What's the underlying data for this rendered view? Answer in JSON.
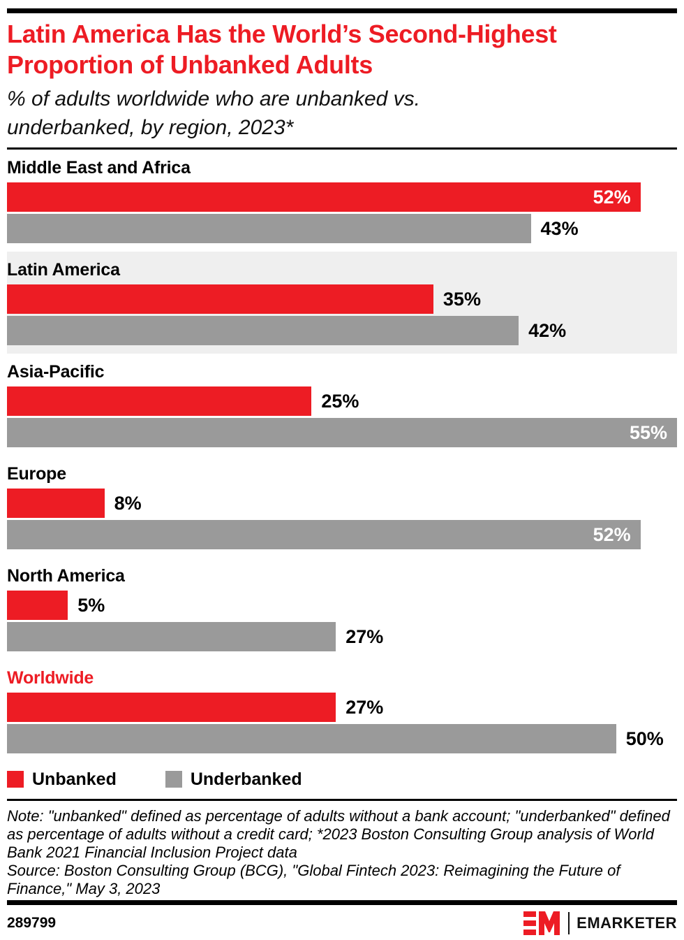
{
  "header": {
    "title": "Latin America Has the World’s Second-Highest\nProportion of Unbanked Adults",
    "subtitle": "% of adults worldwide who are unbanked vs.\nunderbanked, by region, 2023*"
  },
  "chart_data": {
    "type": "bar",
    "orientation": "horizontal",
    "title": "Latin America Has the World’s Second-Highest Proportion of Unbanked Adults",
    "subtitle": "% of adults worldwide who are unbanked vs. underbanked, by region, 2023*",
    "value_suffix": "%",
    "xmax": 55,
    "grid": false,
    "legend_position": "bottom",
    "categories": [
      "Middle East and Africa",
      "Latin America",
      "Asia-Pacific",
      "Europe",
      "North America",
      "Worldwide"
    ],
    "series": [
      {
        "name": "Unbanked",
        "color": "#ed1c24",
        "values": [
          52,
          35,
          25,
          8,
          5,
          27
        ],
        "labels_inside": [
          true,
          false,
          false,
          false,
          false,
          false
        ]
      },
      {
        "name": "Underbanked",
        "color": "#9a9a9a",
        "values": [
          43,
          42,
          55,
          52,
          27,
          50
        ],
        "labels_inside": [
          false,
          false,
          true,
          true,
          false,
          false
        ]
      }
    ],
    "highlighted_category": "Latin America",
    "emphasized_category": "Worldwide"
  },
  "legend": {
    "items": [
      {
        "label": "Unbanked",
        "color": "#ed1c24"
      },
      {
        "label": "Underbanked",
        "color": "#9a9a9a"
      }
    ]
  },
  "notes": {
    "note": "Note: \"unbanked\" defined as percentage of adults without a bank account; \"underbanked\" defined as percentage of adults without a credit card; *2023 Boston Consulting Group analysis of World Bank 2021 Financial Inclusion Project data",
    "source": "Source: Boston Consulting Group (BCG), \"Global Fintech 2023: Reimagining the Future of Finance,\" May 3, 2023"
  },
  "footer": {
    "chart_id": "289799",
    "brand": "EMARKETER",
    "logo_monogram": "EM"
  },
  "colors": {
    "accent_red": "#ed1c24",
    "bar_gray": "#9a9a9a",
    "highlight_bg": "#efefef",
    "rule_black": "#000000",
    "inside_label_text": "#ffffff"
  }
}
